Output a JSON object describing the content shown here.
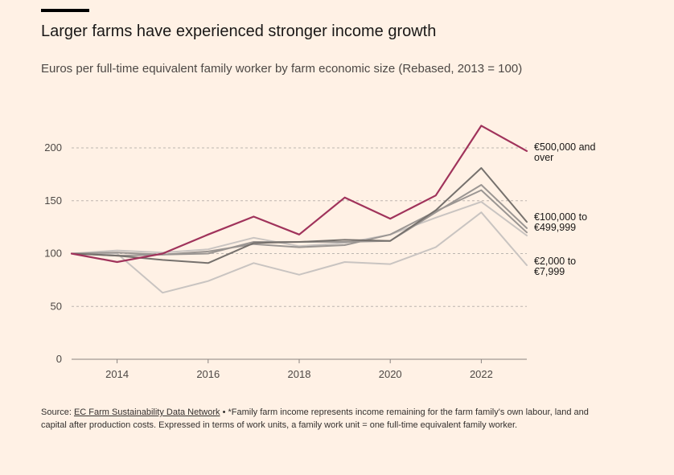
{
  "title": "Larger farms have experienced stronger income growth",
  "subtitle": "Euros per full-time equivalent family worker by farm economic size (Rebased, 2013 = 100)",
  "footer": {
    "source_prefix": "Source: ",
    "source_link": "EC Farm Sustainability Data Network",
    "note": " • *Family farm income represents income remaining for the farm family's own labour, land and capital after production costs. Expressed in terms of work units, a family work unit = one full-time equivalent family worker."
  },
  "colors": {
    "background": "#fff1e5",
    "highlight": "#a0335b",
    "dark_grey": "#76716d",
    "mid_grey": "#9b9693",
    "light_grey": "#c9c4c1",
    "gridline": "#bdb6b0",
    "axis": "#8a8480"
  },
  "chart_data": {
    "type": "line",
    "x": [
      2013,
      2014,
      2015,
      2016,
      2017,
      2018,
      2019,
      2020,
      2021,
      2022,
      2023
    ],
    "x_ticks": [
      "2014",
      "2016",
      "2018",
      "2020",
      "2022"
    ],
    "y_ticks": [
      "0",
      "50",
      "100",
      "150",
      "200"
    ],
    "ylim": [
      0,
      230
    ],
    "xlim": [
      2013,
      2023
    ],
    "grid": true,
    "legend": "direct labels at line ends",
    "series": [
      {
        "name": "€2,000 to €7,999",
        "label_lines": [
          "€2,000 to",
          "€7,999"
        ],
        "color": "light",
        "values": [
          100,
          100,
          63,
          74,
          91,
          80,
          92,
          90,
          106,
          139,
          89
        ]
      },
      {
        "name": "",
        "color": "light",
        "values": [
          100,
          103,
          101,
          104,
          115,
          107,
          110,
          118,
          134,
          149,
          117
        ]
      },
      {
        "name": "",
        "color": "mid",
        "values": [
          100,
          101,
          99,
          102,
          109,
          106,
          108,
          118,
          140,
          160,
          120
        ]
      },
      {
        "name": "€100,000 to €499,999",
        "label_lines": [
          "€100,000 to",
          "€499,999"
        ],
        "color": "mid",
        "values": [
          100,
          98,
          99,
          100,
          111,
          111,
          111,
          112,
          139,
          165,
          124
        ]
      },
      {
        "name": "",
        "color": "dark",
        "values": [
          100,
          98,
          94,
          91,
          110,
          111,
          113,
          112,
          141,
          181,
          130
        ]
      },
      {
        "name": "€500,000 and over",
        "label_lines": [
          "€500,000 and",
          "over"
        ],
        "color": "highlight",
        "values": [
          100,
          92,
          100,
          118,
          135,
          118,
          153,
          133,
          155,
          221,
          197
        ]
      }
    ]
  }
}
